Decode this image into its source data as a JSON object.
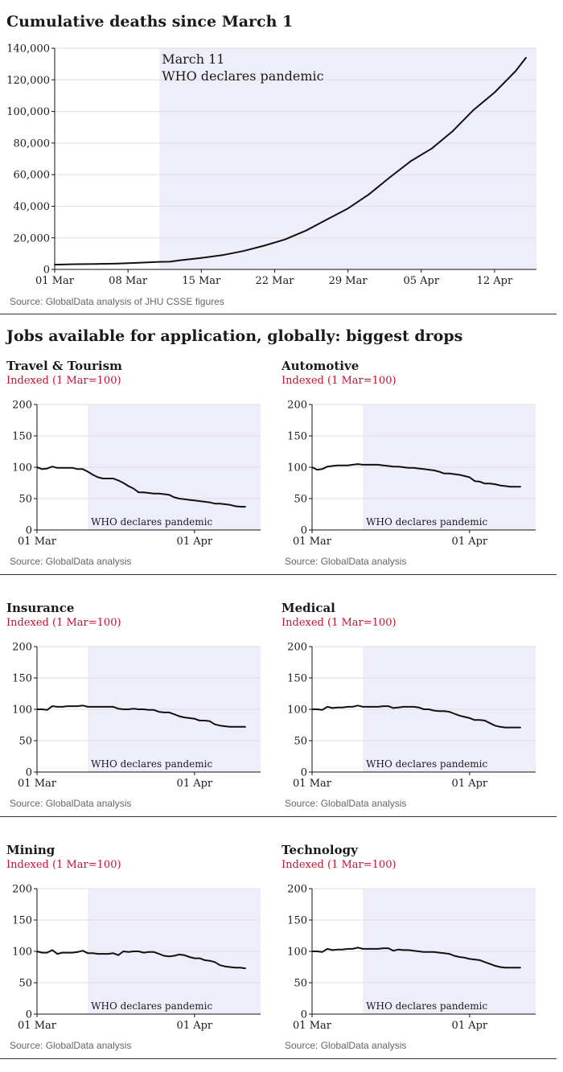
{
  "main": {
    "title": "Cumulative deaths since March 1",
    "source": "Source: GlobalData analysis of JHU CSSE figures"
  },
  "jobs": {
    "title": "Jobs available for application, globally: biggest drops",
    "subtitle": "Indexed (1 Mar=100)",
    "source": "Source: GlobalData analysis"
  },
  "colors": {
    "shade": "#eeeefa",
    "line": "#111111",
    "accent": "#c8102e",
    "grid": "#dddddd"
  },
  "chart_data": [
    {
      "id": "deaths",
      "type": "line",
      "title": "Cumulative deaths since March 1",
      "x_ticks": [
        "01 Mar",
        "08 Mar",
        "15 Mar",
        "22 Mar",
        "29 Mar",
        "05 Apr",
        "12 Apr"
      ],
      "y_ticks": [
        "0",
        "20,000",
        "40,000",
        "60,000",
        "80,000",
        "100,000",
        "120,000",
        "140,000"
      ],
      "ylim": [
        0,
        140000
      ],
      "xlim": [
        0,
        46
      ],
      "shade_from_day": 10,
      "annotation": [
        "March 11",
        "WHO declares pandemic"
      ],
      "grid": true,
      "x": [
        0,
        2,
        4,
        6,
        8,
        10,
        11,
        12,
        14,
        16,
        18,
        20,
        22,
        24,
        26,
        28,
        30,
        32,
        34,
        36,
        38,
        40,
        42,
        44,
        45
      ],
      "values": [
        3000,
        3300,
        3450,
        3700,
        4200,
        4800,
        4900,
        5800,
        7300,
        9000,
        11600,
        15000,
        19000,
        24600,
        31600,
        38600,
        47500,
        58300,
        68500,
        76500,
        87500,
        101000,
        112000,
        125500,
        134000
      ]
    },
    {
      "id": "travel",
      "type": "line",
      "title": "Travel & Tourism",
      "ylim": [
        0,
        200
      ],
      "y_ticks": [
        "0",
        "50",
        "100",
        "150",
        "200"
      ],
      "x_ticks": [
        "01 Mar",
        "01 Apr"
      ],
      "xlim": [
        0,
        44
      ],
      "shade_from_day": 10,
      "annotation": "WHO declares pandemic",
      "x": [
        0,
        1,
        2,
        3,
        4,
        5,
        6,
        7,
        8,
        9,
        10,
        11,
        12,
        13,
        14,
        15,
        16,
        17,
        18,
        19,
        20,
        21,
        22,
        23,
        24,
        25,
        26,
        27,
        28,
        29,
        30,
        31,
        32,
        33,
        34,
        35,
        36,
        37,
        38,
        39,
        40,
        41
      ],
      "values": [
        100,
        97,
        98,
        101,
        99,
        99,
        99,
        99,
        97,
        97,
        93,
        88,
        84,
        82,
        82,
        82,
        79,
        75,
        70,
        66,
        60,
        60,
        59,
        58,
        58,
        57,
        56,
        52,
        50,
        49,
        48,
        47,
        46,
        45,
        44,
        42,
        42,
        41,
        40,
        38,
        37,
        37
      ]
    },
    {
      "id": "automotive",
      "type": "line",
      "title": "Automotive",
      "ylim": [
        0,
        200
      ],
      "y_ticks": [
        "0",
        "50",
        "100",
        "150",
        "200"
      ],
      "x_ticks": [
        "01 Mar",
        "01 Apr"
      ],
      "xlim": [
        0,
        44
      ],
      "shade_from_day": 10,
      "annotation": "WHO declares pandemic",
      "x": [
        0,
        1,
        2,
        3,
        4,
        5,
        6,
        7,
        8,
        9,
        10,
        11,
        12,
        13,
        14,
        15,
        16,
        17,
        18,
        19,
        20,
        21,
        22,
        23,
        24,
        25,
        26,
        27,
        28,
        29,
        30,
        31,
        32,
        33,
        34,
        35,
        36,
        37,
        38,
        39,
        40,
        41
      ],
      "values": [
        100,
        96,
        97,
        101,
        102,
        103,
        103,
        103,
        104,
        105,
        104,
        104,
        104,
        104,
        103,
        102,
        101,
        101,
        100,
        99,
        99,
        98,
        97,
        96,
        95,
        93,
        90,
        90,
        89,
        88,
        86,
        84,
        78,
        77,
        74,
        74,
        73,
        71,
        70,
        69,
        69,
        69
      ]
    },
    {
      "id": "insurance",
      "type": "line",
      "title": "Insurance",
      "ylim": [
        0,
        200
      ],
      "y_ticks": [
        "0",
        "50",
        "100",
        "150",
        "200"
      ],
      "x_ticks": [
        "01 Mar",
        "01 Apr"
      ],
      "xlim": [
        0,
        44
      ],
      "shade_from_day": 10,
      "annotation": "WHO declares pandemic",
      "x": [
        0,
        1,
        2,
        3,
        4,
        5,
        6,
        7,
        8,
        9,
        10,
        11,
        12,
        13,
        14,
        15,
        16,
        17,
        18,
        19,
        20,
        21,
        22,
        23,
        24,
        25,
        26,
        27,
        28,
        29,
        30,
        31,
        32,
        33,
        34,
        35,
        36,
        37,
        38,
        39,
        40,
        41
      ],
      "values": [
        100,
        100,
        99,
        105,
        104,
        104,
        105,
        105,
        105,
        106,
        104,
        104,
        104,
        104,
        104,
        104,
        101,
        100,
        100,
        101,
        100,
        100,
        99,
        99,
        96,
        95,
        95,
        92,
        89,
        87,
        86,
        85,
        82,
        82,
        81,
        76,
        74,
        73,
        72,
        72,
        72,
        72
      ]
    },
    {
      "id": "medical",
      "type": "line",
      "title": "Medical",
      "ylim": [
        0,
        200
      ],
      "y_ticks": [
        "0",
        "50",
        "100",
        "150",
        "200"
      ],
      "x_ticks": [
        "01 Mar",
        "01 Apr"
      ],
      "xlim": [
        0,
        44
      ],
      "shade_from_day": 10,
      "annotation": "WHO declares pandemic",
      "x": [
        0,
        1,
        2,
        3,
        4,
        5,
        6,
        7,
        8,
        9,
        10,
        11,
        12,
        13,
        14,
        15,
        16,
        17,
        18,
        19,
        20,
        21,
        22,
        23,
        24,
        25,
        26,
        27,
        28,
        29,
        30,
        31,
        32,
        33,
        34,
        35,
        36,
        37,
        38,
        39,
        40,
        41
      ],
      "values": [
        100,
        100,
        99,
        104,
        102,
        103,
        103,
        104,
        104,
        106,
        104,
        104,
        104,
        104,
        105,
        105,
        102,
        103,
        104,
        104,
        104,
        103,
        100,
        100,
        98,
        97,
        97,
        96,
        93,
        90,
        88,
        86,
        83,
        83,
        82,
        78,
        74,
        72,
        71,
        71,
        71,
        71
      ]
    },
    {
      "id": "mining",
      "type": "line",
      "title": "Mining",
      "ylim": [
        0,
        200
      ],
      "y_ticks": [
        "0",
        "50",
        "100",
        "150",
        "200"
      ],
      "x_ticks": [
        "01 Mar",
        "01 Apr"
      ],
      "xlim": [
        0,
        44
      ],
      "shade_from_day": 10,
      "annotation": "WHO declares pandemic",
      "x": [
        0,
        1,
        2,
        3,
        4,
        5,
        6,
        7,
        8,
        9,
        10,
        11,
        12,
        13,
        14,
        15,
        16,
        17,
        18,
        19,
        20,
        21,
        22,
        23,
        24,
        25,
        26,
        27,
        28,
        29,
        30,
        31,
        32,
        33,
        34,
        35,
        36,
        37,
        38,
        39,
        40,
        41
      ],
      "values": [
        100,
        98,
        98,
        102,
        96,
        98,
        98,
        98,
        99,
        101,
        97,
        97,
        96,
        96,
        96,
        97,
        94,
        100,
        99,
        100,
        100,
        98,
        99,
        99,
        96,
        93,
        92,
        93,
        95,
        94,
        91,
        89,
        89,
        86,
        85,
        83,
        78,
        76,
        75,
        74,
        74,
        73
      ]
    },
    {
      "id": "technology",
      "type": "line",
      "title": "Technology",
      "ylim": [
        0,
        200
      ],
      "y_ticks": [
        "0",
        "50",
        "100",
        "150",
        "200"
      ],
      "x_ticks": [
        "01 Mar",
        "01 Apr"
      ],
      "xlim": [
        0,
        44
      ],
      "shade_from_day": 10,
      "annotation": "WHO declares pandemic",
      "x": [
        0,
        1,
        2,
        3,
        4,
        5,
        6,
        7,
        8,
        9,
        10,
        11,
        12,
        13,
        14,
        15,
        16,
        17,
        18,
        19,
        20,
        21,
        22,
        23,
        24,
        25,
        26,
        27,
        28,
        29,
        30,
        31,
        32,
        33,
        34,
        35,
        36,
        37,
        38,
        39,
        40,
        41
      ],
      "values": [
        100,
        100,
        99,
        104,
        102,
        103,
        103,
        104,
        104,
        106,
        104,
        104,
        104,
        104,
        105,
        105,
        101,
        103,
        102,
        102,
        101,
        100,
        99,
        99,
        99,
        98,
        97,
        96,
        93,
        91,
        90,
        88,
        87,
        86,
        83,
        80,
        77,
        75,
        74,
        74,
        74,
        74
      ]
    }
  ]
}
